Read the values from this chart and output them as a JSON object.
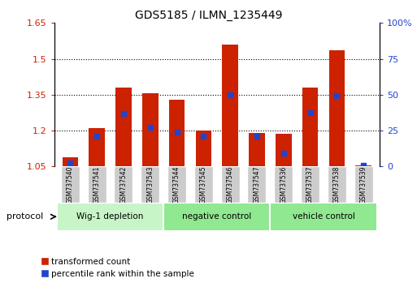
{
  "title": "GDS5185 / ILMN_1235449",
  "samples": [
    "GSM737540",
    "GSM737541",
    "GSM737542",
    "GSM737543",
    "GSM737544",
    "GSM737545",
    "GSM737546",
    "GSM737547",
    "GSM737536",
    "GSM737537",
    "GSM737538",
    "GSM737539"
  ],
  "red_bar_tops": [
    1.09,
    1.21,
    1.38,
    1.355,
    1.33,
    1.2,
    1.56,
    1.19,
    1.185,
    1.38,
    1.535,
    1.055
  ],
  "blue_marker_vals": [
    1.065,
    1.175,
    1.27,
    1.215,
    1.195,
    1.175,
    1.35,
    1.175,
    1.105,
    1.275,
    1.345,
    1.055
  ],
  "bar_base": 1.05,
  "ylim_left": [
    1.05,
    1.65
  ],
  "ylim_right": [
    0,
    100
  ],
  "yticks_left": [
    1.05,
    1.2,
    1.35,
    1.5,
    1.65
  ],
  "ytick_labels_left": [
    "1.05",
    "1.2",
    "1.35",
    "1.5",
    "1.65"
  ],
  "yticks_right": [
    0,
    25,
    50,
    75,
    100
  ],
  "ytick_labels_right": [
    "0",
    "25",
    "50",
    "75",
    "100%"
  ],
  "groups": [
    {
      "label": "Wig-1 depletion",
      "indices": [
        0,
        1,
        2,
        3
      ],
      "color": "#c8f5c8"
    },
    {
      "label": "negative control",
      "indices": [
        4,
        5,
        6,
        7
      ],
      "color": "#90e890"
    },
    {
      "label": "vehicle control",
      "indices": [
        8,
        9,
        10,
        11
      ],
      "color": "#90e890"
    }
  ],
  "bar_color": "#cc2200",
  "blue_color": "#2244cc",
  "bar_width": 0.6,
  "left_axis_color": "#cc2200",
  "right_axis_color": "#2244cc",
  "label_bg_color": "#cccccc",
  "protocol_label": "protocol",
  "legend_items": [
    "transformed count",
    "percentile rank within the sample"
  ]
}
